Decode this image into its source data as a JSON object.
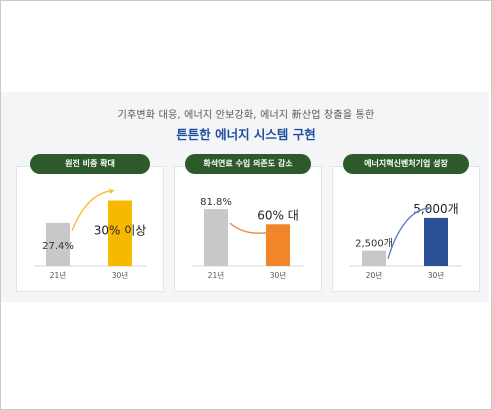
{
  "header": {
    "subtitle": "기후변화 대응, 에너지 안보강화, 에너지 新산업 창출을 통한",
    "headline": "튼튼한 에너지 시스템 구현"
  },
  "colors": {
    "pill": "#2d5a2a",
    "headline": "#1f4f9c",
    "gray_bar": "#c8c8c8",
    "yellow_bar": "#f7b900",
    "orange_bar": "#f0852a",
    "blue_bar": "#2b4f94",
    "arrow_yellow": "#f5c233",
    "arrow_orange": "#ee8a3c",
    "arrow_blue": "#5a82c4"
  },
  "chart_data": [
    {
      "type": "bar",
      "title": "원전 비중 확대",
      "categories": [
        "21년",
        "30년"
      ],
      "values": [
        27.4,
        30
      ],
      "data_labels": [
        "27.4%",
        "30% 이상"
      ],
      "ylim": [
        0,
        40
      ]
    },
    {
      "type": "bar",
      "title": "화석연료 수입 의존도 감소",
      "categories": [
        "21년",
        "30년"
      ],
      "values": [
        81.8,
        60
      ],
      "data_labels": [
        "81.8%",
        "60% 대"
      ],
      "ylim": [
        0,
        100
      ]
    },
    {
      "type": "bar",
      "title": "에너지혁신벤처기업 성장",
      "categories": [
        "20년",
        "30년"
      ],
      "values": [
        2500,
        5000
      ],
      "data_labels": [
        "2,500개",
        "5,000개"
      ],
      "ylim": [
        0,
        6000
      ]
    }
  ]
}
